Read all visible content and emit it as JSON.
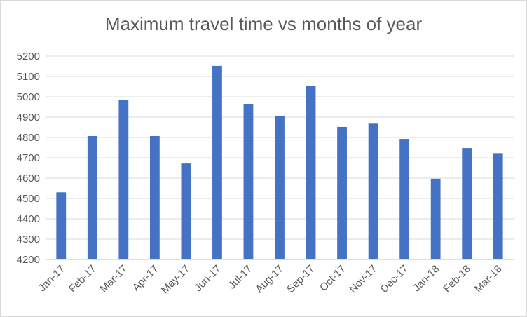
{
  "chart_data": {
    "type": "bar",
    "title": "Maximum travel time vs months of year",
    "xlabel": "",
    "ylabel": "",
    "categories": [
      "Jan-17",
      "Feb-17",
      "Mar-17",
      "Apr-17",
      "May-17",
      "Jun-17",
      "Jul-17",
      "Aug-17",
      "Sep-17",
      "Oct-17",
      "Nov-17",
      "Dec-17",
      "Jan-18",
      "Feb-18",
      "Mar-18"
    ],
    "values": [
      4530,
      4807,
      4983,
      4807,
      4672,
      5152,
      4965,
      4907,
      5055,
      4852,
      4868,
      4793,
      4597,
      4748,
      4723
    ],
    "ylim": [
      4200,
      5200
    ],
    "yticks": [
      "4200",
      "4300",
      "4400",
      "4500",
      "4600",
      "4700",
      "4800",
      "4900",
      "5000",
      "5100",
      "5200"
    ],
    "grid": true,
    "legend": "none",
    "bar_color": "#4472c4",
    "grid_color": "#d9d9d9"
  }
}
